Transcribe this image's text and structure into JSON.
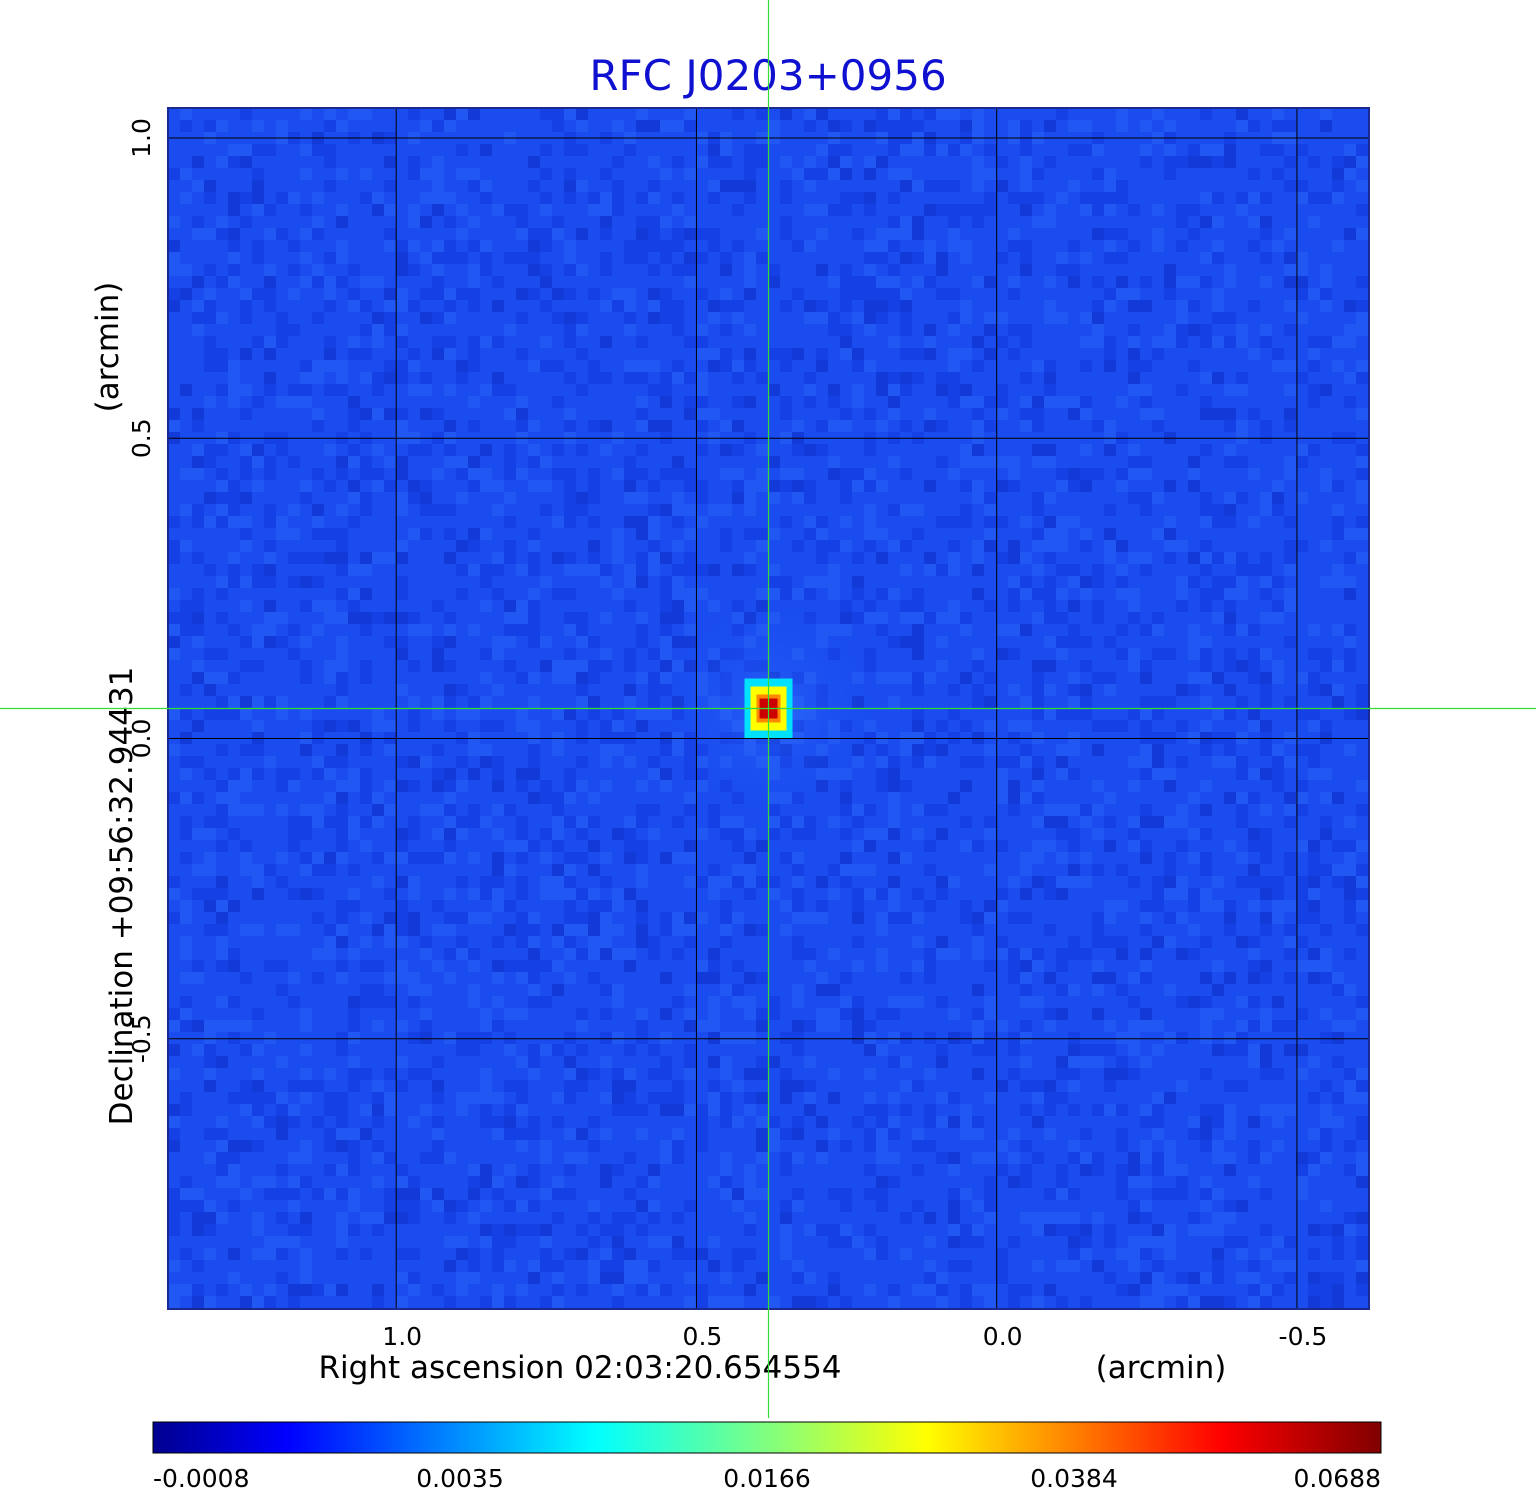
{
  "chart_data": {
    "type": "heatmap",
    "title": "RFC J0203+0956",
    "xlabel": "Right ascension  02:03:20.654554",
    "xunit": "(arcmin)",
    "ylabel": "Declination  +09:56:32.94431",
    "yunit": "(arcmin)",
    "x_ticks": [
      {
        "value": 1.0,
        "label": "1.0"
      },
      {
        "value": 0.5,
        "label": "0.5"
      },
      {
        "value": 0.0,
        "label": "0.0"
      },
      {
        "value": -0.5,
        "label": "-0.5"
      }
    ],
    "y_ticks": [
      {
        "value": 1.0,
        "label": "1.0"
      },
      {
        "value": 0.5,
        "label": "0.5"
      },
      {
        "value": 0.0,
        "label": "0.0"
      },
      {
        "value": -0.5,
        "label": "-0.5"
      }
    ],
    "xlim": [
      1.38,
      -0.62
    ],
    "ylim": [
      -0.95,
      1.05
    ],
    "grid": true,
    "crosshair": {
      "x": 0.38,
      "y": 0.05
    },
    "peak": {
      "x": 0.38,
      "y": 0.05,
      "value": 0.0688
    },
    "colormap": "jet",
    "colorbar": {
      "tick_labels": [
        "-0.0008",
        "0.0035",
        "0.0166",
        "0.0384",
        "0.0688"
      ]
    },
    "colors": {
      "title": "#1010d0",
      "grid": "#000000",
      "crosshair": "#33dd33",
      "background_field": "#1a4cf0"
    }
  }
}
